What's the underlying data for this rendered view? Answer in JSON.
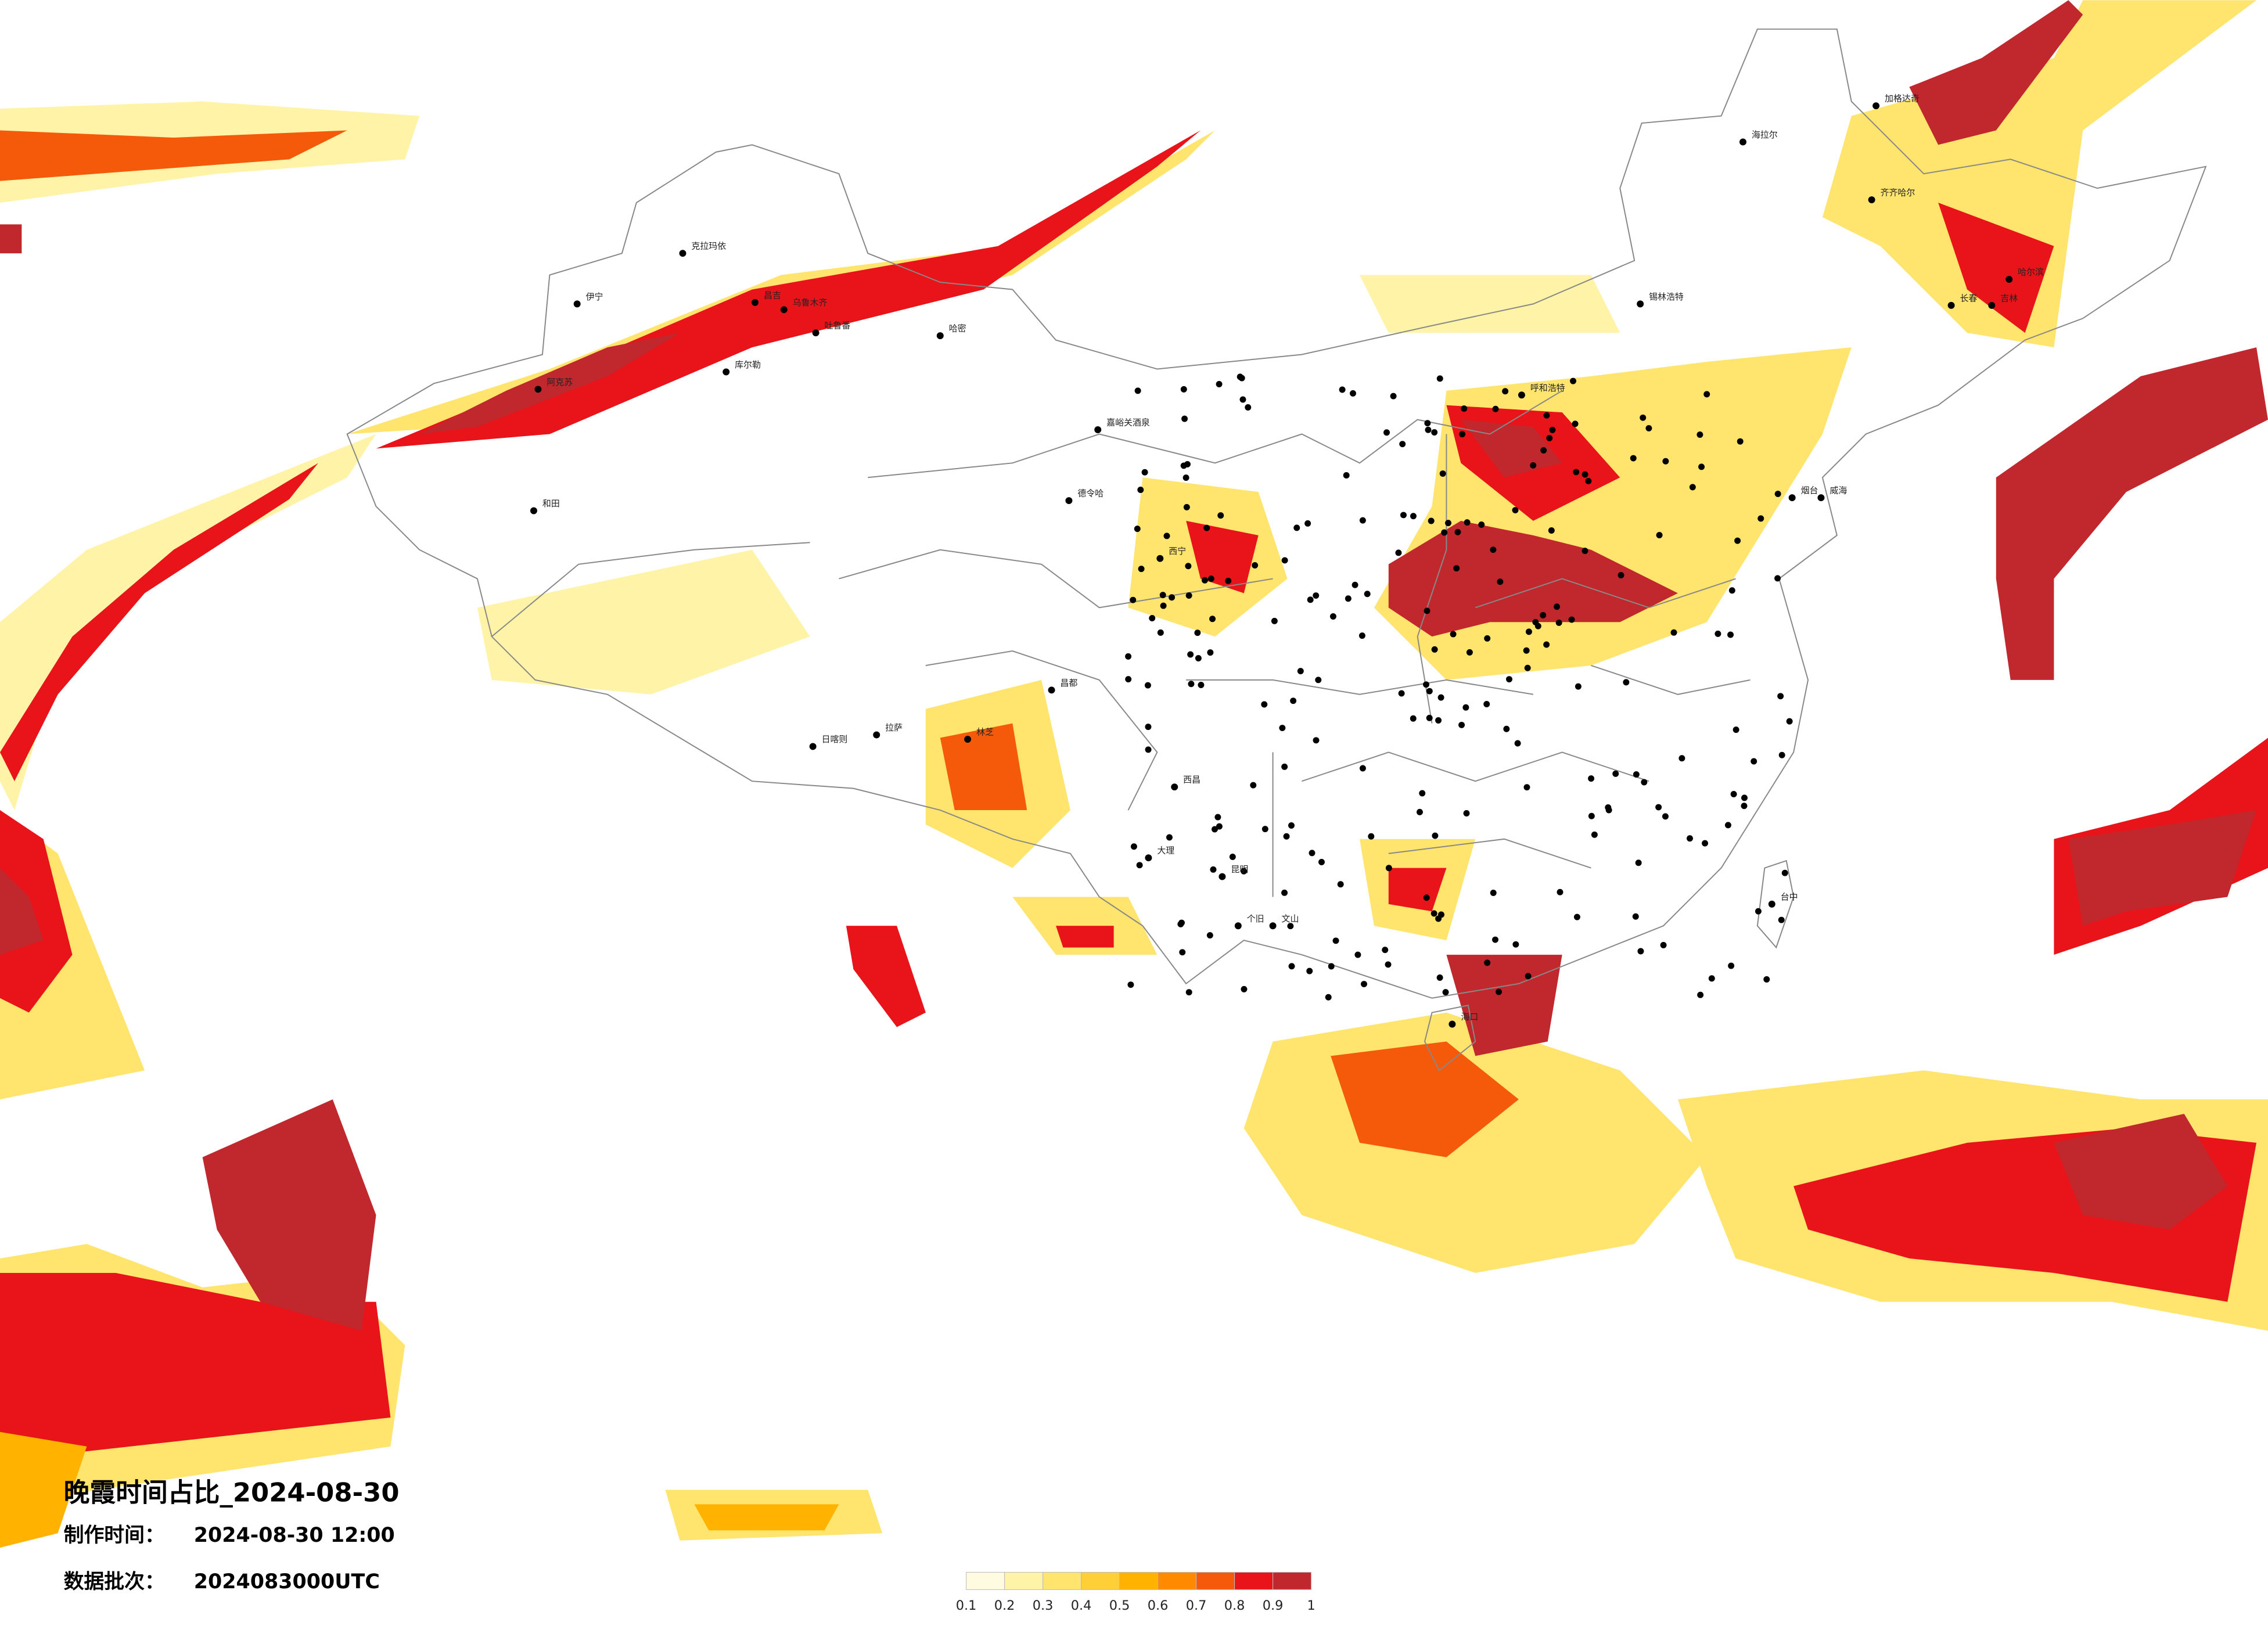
{
  "map": {
    "title": "晚霞时间占比_2024-08-30",
    "made_time_label": "制作时间：",
    "made_time": "2024-08-30 12:00",
    "batch_label": "数据批次：",
    "batch": "2024083000UTC",
    "legend": {
      "ticks": [
        0.1,
        0.2,
        0.3,
        0.4,
        0.5,
        0.6,
        0.7,
        0.8,
        0.9,
        1
      ],
      "colors": [
        "#fffbe0",
        "#fff3a8",
        "#ffe46e",
        "#ffcf38",
        "#ffb300",
        "#ff8a00",
        "#f55a0a",
        "#e8141a",
        "#c0282d"
      ]
    },
    "cities": [
      "伊宁",
      "克拉玛依",
      "昌吉",
      "乌鲁木齐",
      "吐鲁番",
      "哈密",
      "库尔勒",
      "阿克苏",
      "和田",
      "嘉峪关酒泉",
      "德令哈",
      "西宁",
      "日喀则",
      "拉萨",
      "林芝",
      "昌都",
      "西昌",
      "大理",
      "昆明",
      "个旧",
      "文山",
      "海口",
      "台中",
      "海拉尔",
      "加格达奇",
      "齐齐哈尔",
      "哈尔滨",
      "长春",
      "吉林",
      "呼和浩特",
      "锡林浩特",
      "烟台",
      "威海"
    ]
  }
}
